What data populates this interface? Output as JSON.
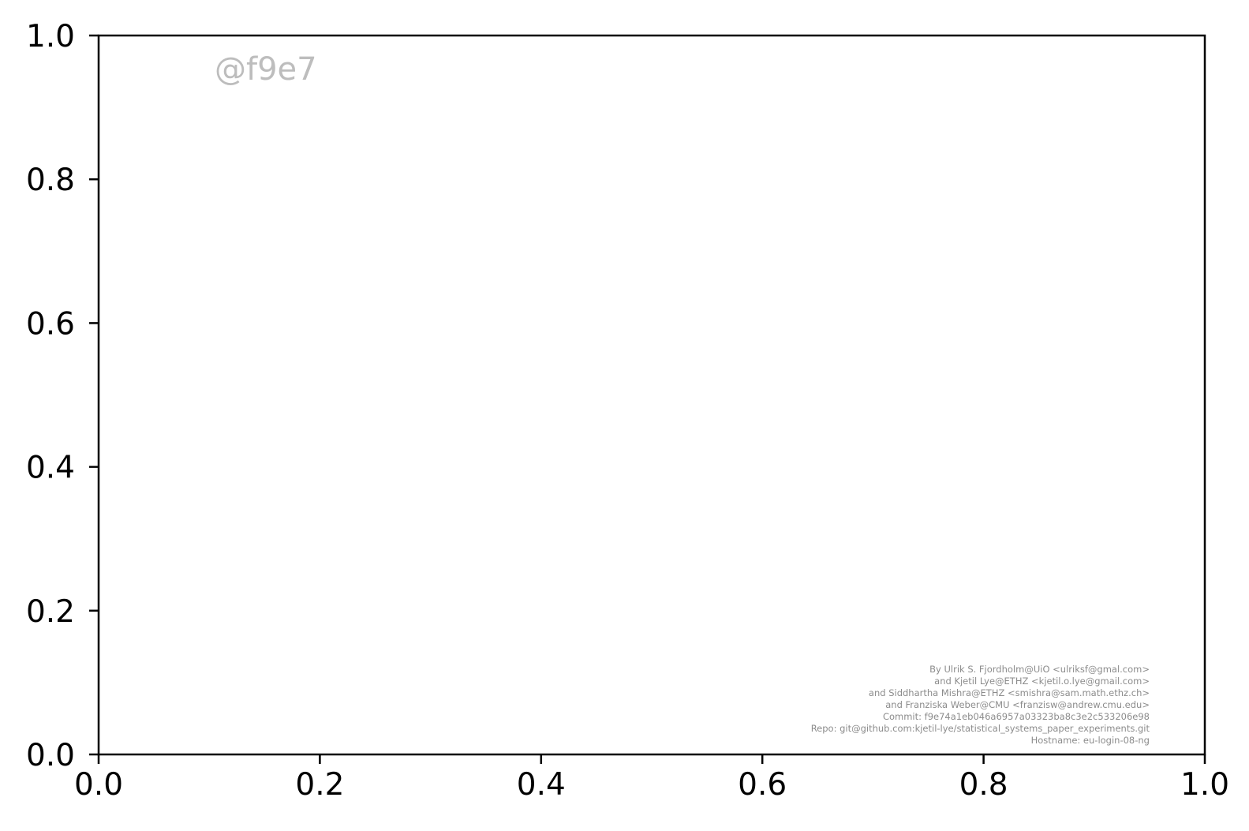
{
  "chart_data": {
    "type": "line",
    "title": "",
    "xlabel": "",
    "ylabel": "",
    "xlim": [
      0.0,
      1.0
    ],
    "ylim": [
      0.0,
      1.0
    ],
    "x_ticks": [
      "0.0",
      "0.2",
      "0.4",
      "0.6",
      "0.8",
      "1.0"
    ],
    "y_ticks": [
      "0.0",
      "0.2",
      "0.4",
      "0.6",
      "0.8",
      "1.0"
    ],
    "grid": false,
    "series": [],
    "watermark": "@f9e7",
    "credits": [
      "By Ulrik S. Fjordholm@UiO <ulriksf@gmal.com>",
      "and Kjetil Lye@ETHZ <kjetil.o.lye@gmail.com>",
      "and Siddhartha Mishra@ETHZ <smishra@sam.math.ethz.ch>",
      "and Franziska Weber@CMU <franzisw@andrew.cmu.edu>",
      "Commit: f9e74a1eb046a6957a03323ba8c3e2c533206e98",
      "Repo: git@github.com:kjetil-lye/statistical_systems_paper_experiments.git",
      "Hostname: eu-login-08-ng"
    ]
  }
}
